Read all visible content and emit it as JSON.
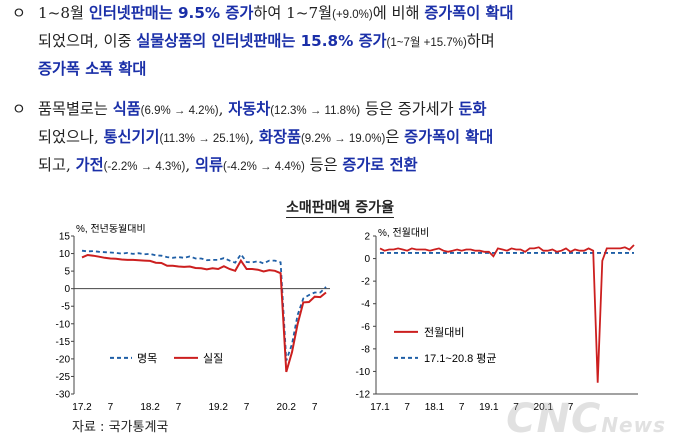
{
  "paragraphs": [
    {
      "bullet": "ㅇ",
      "line1": [
        "1~8월 ",
        "인터넷판매는 9.5% 증가",
        "하여 1~7월",
        "(+9.0%)",
        "에 비해 ",
        "증가폭이 확대"
      ],
      "line2": [
        "되었으며, 이중 ",
        "실물상품의 인터넷판매는 15.8% 증가",
        "(1~7월 +15.7%)",
        "하며"
      ],
      "line3": [
        "증가폭 소폭 확대"
      ]
    },
    {
      "bullet": "ㅇ",
      "line1": [
        "품목별로는 ",
        "식품",
        "(6.9% → 4.2%)",
        ", ",
        "자동차",
        "(12.3% → 11.8%)",
        " 등은 증가세가 ",
        "둔화"
      ],
      "line2": [
        "되었으나, ",
        "통신기기",
        "(11.3% → 25.1%)",
        ", ",
        "화장품",
        "(9.2% → 19.0%)",
        "은 ",
        "증가폭이 확대"
      ],
      "line3": [
        "되고, ",
        "가전",
        "(-2.2% → 4.3%)",
        ", ",
        "의류",
        "(-4.2% → 4.4%)",
        " 등은 ",
        "증가로 전환"
      ]
    }
  ],
  "chart_title": "소매판매액 증가율",
  "source": "자료 : 국가통계국",
  "watermark": {
    "main": "CNC",
    "sub": "News"
  },
  "colors": {
    "highlight": "#1a2fa8",
    "red": "#cc1f1f",
    "blue": "#1f5fa6"
  },
  "chart_data": [
    {
      "type": "line",
      "unit_label": "%, 전년동월대비",
      "ylim": [
        -30,
        15
      ],
      "yticks": [
        15,
        10,
        5,
        0,
        -5,
        -10,
        -15,
        -20,
        -25,
        -30
      ],
      "xtick_labels": [
        "17.2",
        "7",
        "18.2",
        "7",
        "19.2",
        "7",
        "20.2",
        "7"
      ],
      "x_start": "2017-02",
      "series": [
        {
          "name": "명목",
          "color": "#1f5fa6",
          "style": "dashed",
          "values": [
            10.8,
            10.6,
            10.7,
            10.5,
            10.4,
            10.3,
            10.2,
            10.0,
            10.2,
            9.9,
            10.1,
            9.8,
            9.9,
            9.5,
            9.4,
            9.0,
            8.8,
            9.0,
            8.8,
            9.2,
            8.6,
            8.6,
            8.1,
            8.2,
            8.2,
            8.7,
            8.0,
            7.4,
            9.8,
            7.6,
            7.5,
            7.8,
            7.2,
            8.0,
            8.0,
            7.5,
            -20.5,
            -15.8,
            -7.5,
            -2.8,
            -1.8,
            -1.1,
            -1.1,
            0.5
          ]
        },
        {
          "name": "실질",
          "color": "#cc1f1f",
          "style": "solid",
          "values": [
            8.9,
            9.6,
            9.4,
            9.1,
            8.8,
            8.6,
            8.5,
            8.3,
            8.2,
            8.2,
            8.1,
            8.0,
            7.9,
            7.4,
            7.3,
            6.5,
            6.5,
            6.3,
            6.2,
            6.3,
            5.9,
            5.8,
            5.5,
            5.8,
            5.6,
            6.4,
            5.6,
            5.1,
            8.0,
            5.6,
            5.6,
            5.4,
            4.9,
            5.3,
            5.1,
            4.4,
            -23.7,
            -18.1,
            -10.1,
            -3.9,
            -3.8,
            -2.3,
            -2.4,
            -1.1
          ]
        }
      ]
    },
    {
      "type": "line",
      "unit_label": "%, 전월대비",
      "ylim": [
        -12,
        2
      ],
      "yticks": [
        2,
        0,
        -2,
        -4,
        -6,
        -8,
        -10,
        -12
      ],
      "xtick_labels": [
        "17.1",
        "7",
        "18.1",
        "7",
        "19.1",
        "7",
        "20.1",
        "7"
      ],
      "x_start": "2017-01",
      "series": [
        {
          "name": "전월대비",
          "color": "#cc1f1f",
          "style": "solid",
          "values": [
            0.9,
            0.7,
            0.8,
            0.8,
            0.9,
            0.8,
            0.7,
            0.9,
            0.8,
            0.8,
            0.8,
            0.7,
            0.8,
            0.9,
            0.7,
            0.6,
            0.7,
            0.8,
            0.7,
            0.8,
            0.8,
            0.7,
            0.7,
            0.6,
            0.6,
            0.2,
            0.9,
            0.8,
            0.7,
            0.9,
            0.8,
            0.8,
            0.6,
            0.9,
            0.9,
            1.0,
            0.7,
            0.7,
            0.8,
            0.6,
            0.7,
            0.9,
            0.6,
            0.8,
            0.7,
            0.7,
            0.9,
            0.7,
            -11.0,
            -0.2,
            0.9,
            0.9,
            0.9,
            0.9,
            1.0,
            0.8,
            1.2
          ]
        },
        {
          "name": "17.1~20.8 평균",
          "color": "#1f5fa6",
          "style": "dashed",
          "values": [
            0.5,
            0.5
          ]
        }
      ]
    }
  ]
}
